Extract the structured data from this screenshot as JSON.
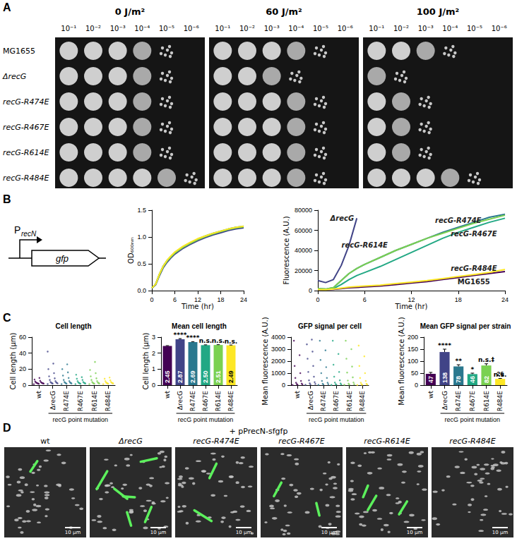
{
  "panel_labels": [
    "A",
    "B",
    "C",
    "D"
  ],
  "spot_assay": {
    "doses": [
      "0 J/m²",
      "60 J/m²",
      "100 J/m²"
    ],
    "dilutions": [
      "10⁻¹",
      "10⁻²",
      "10⁻³",
      "10⁻⁴",
      "10⁻⁵",
      "10⁻⁶"
    ],
    "strains": [
      "MG1655",
      "ΔrecG",
      "recG-R474E",
      "recG-R467E",
      "recG-R614E",
      "recG-R484E"
    ],
    "spots_visible": [
      [
        5,
        5,
        4
      ],
      [
        5,
        4,
        2
      ],
      [
        5,
        5,
        3
      ],
      [
        5,
        5,
        3
      ],
      [
        5,
        5,
        3
      ],
      [
        6,
        5,
        5
      ]
    ]
  },
  "schematic": {
    "promoter": "P",
    "promoter_subscript": "recN",
    "gene": "gfp"
  },
  "chart_data": [
    {
      "type": "line",
      "x_label": "Time (hr)",
      "y_label": "OD₆₀₀ₙₘ",
      "x": [
        0,
        1,
        2,
        3,
        4,
        5,
        6,
        8,
        10,
        12,
        14,
        16,
        18,
        20,
        22,
        24
      ],
      "series": [
        {
          "color": "#440154",
          "values": [
            0.05,
            0.12,
            0.3,
            0.45,
            0.55,
            0.63,
            0.7,
            0.8,
            0.88,
            0.95,
            1.0,
            1.05,
            1.09,
            1.13,
            1.16,
            1.18
          ]
        },
        {
          "color": "#414487",
          "values": [
            0.05,
            0.11,
            0.28,
            0.43,
            0.53,
            0.61,
            0.68,
            0.78,
            0.86,
            0.93,
            0.99,
            1.04,
            1.08,
            1.12,
            1.15,
            1.17
          ]
        },
        {
          "color": "#2a788e",
          "values": [
            0.05,
            0.12,
            0.3,
            0.46,
            0.56,
            0.64,
            0.71,
            0.81,
            0.89,
            0.96,
            1.01,
            1.06,
            1.1,
            1.14,
            1.17,
            1.19
          ]
        },
        {
          "color": "#22a884",
          "values": [
            0.05,
            0.12,
            0.31,
            0.46,
            0.56,
            0.64,
            0.71,
            0.81,
            0.89,
            0.96,
            1.02,
            1.07,
            1.11,
            1.15,
            1.18,
            1.2
          ]
        },
        {
          "color": "#7ad151",
          "values": [
            0.05,
            0.12,
            0.3,
            0.45,
            0.55,
            0.63,
            0.7,
            0.8,
            0.88,
            0.95,
            1.01,
            1.06,
            1.1,
            1.14,
            1.17,
            1.19
          ]
        },
        {
          "color": "#fde725",
          "values": [
            0.05,
            0.12,
            0.31,
            0.46,
            0.57,
            0.65,
            0.72,
            0.82,
            0.9,
            0.97,
            1.02,
            1.07,
            1.11,
            1.15,
            1.18,
            1.2
          ]
        }
      ],
      "xlim": [
        0,
        24
      ],
      "xticks": [
        0,
        6,
        12,
        18,
        24
      ],
      "ylim": [
        0,
        1.5
      ],
      "yticks": [
        {
          "value": 0,
          "label": "0.0"
        },
        {
          "value": 0.5,
          "label": "0.5"
        },
        {
          "value": 1,
          "label": "1.0"
        },
        {
          "value": 1.5,
          "label": "1.5"
        }
      ]
    },
    {
      "type": "line",
      "x_label": "Time (hr)",
      "y_label": "Fluorescence (A.U.)",
      "x": [
        0,
        1,
        2,
        3,
        4,
        5,
        6,
        8,
        10,
        12,
        14,
        16,
        18,
        20,
        22,
        24
      ],
      "series": [
        {
          "name": "MG1655",
          "color": "#440154",
          "values": [
            1000,
            800,
            1200,
            2000,
            2800,
            3200,
            3600,
            4500,
            6000,
            7500,
            9000,
            11000,
            13000,
            15000,
            17000,
            19000
          ]
        },
        {
          "name": "ΔrecG",
          "color": "#414487",
          "values": [
            10000,
            8000,
            11000,
            25000,
            45000,
            72000,
            null,
            null,
            null,
            null,
            null,
            null,
            null,
            null,
            null,
            null
          ]
        },
        {
          "name": "recG-R474E",
          "color": "#2a788e",
          "values": [
            2000,
            1500,
            3000,
            10000,
            17000,
            22000,
            26000,
            33000,
            40000,
            46000,
            52000,
            58000,
            63000,
            68000,
            73000,
            76000
          ]
        },
        {
          "name": "recG-R467E",
          "color": "#22a884",
          "values": [
            1500,
            1000,
            2000,
            6000,
            11000,
            15000,
            18000,
            24000,
            31000,
            38000,
            45000,
            52000,
            58000,
            63000,
            68000,
            72000
          ]
        },
        {
          "name": "recG-R614E",
          "color": "#7ad151",
          "values": [
            2000,
            1500,
            3000,
            10000,
            17000,
            22000,
            26000,
            33000,
            40000,
            46000,
            52000,
            57000,
            62000,
            67000,
            71000,
            75000
          ]
        },
        {
          "name": "recG-R484E",
          "color": "#fde725",
          "values": [
            1000,
            800,
            1500,
            2500,
            3500,
            4000,
            4500,
            5500,
            7000,
            8500,
            10000,
            12000,
            14000,
            16000,
            18000,
            21000
          ]
        }
      ],
      "xlim": [
        0,
        24
      ],
      "xticks": [
        0,
        6,
        12,
        18,
        24
      ],
      "ylim": [
        0,
        80000
      ],
      "yticks": [
        0,
        20000,
        40000,
        60000,
        80000
      ]
    },
    {
      "type": "scatter",
      "title": "Cell length",
      "y_label": "Cell length (µm)",
      "x_label": "recG point mutation",
      "categories": [
        "wt",
        "ΔrecG",
        "R474E",
        "R467E",
        "R614E",
        "R484E"
      ],
      "colors": [
        "#440154",
        "#414487",
        "#2a788e",
        "#22a884",
        "#7ad151",
        "#fde725"
      ],
      "values": [
        [
          1.2,
          1.6,
          1.9,
          2.1,
          2.3,
          2.4,
          2.6,
          2.8,
          3.0,
          3.4,
          3.9,
          4.6,
          5.5,
          7,
          9
        ],
        [
          1.4,
          1.9,
          2.2,
          2.5,
          2.8,
          3.1,
          3.5,
          4,
          5,
          6.5,
          8.5,
          11,
          15,
          20,
          27,
          42
        ],
        [
          1.3,
          1.8,
          2.1,
          2.4,
          2.7,
          3,
          3.4,
          4,
          5,
          6.5,
          9,
          12,
          16,
          20,
          26
        ],
        [
          1.3,
          1.8,
          2.1,
          2.3,
          2.5,
          2.7,
          3,
          3.4,
          4,
          5,
          6.5,
          8,
          10,
          13
        ],
        [
          1.3,
          1.8,
          2.1,
          2.3,
          2.6,
          2.9,
          3.3,
          4,
          5,
          6.5,
          8.5,
          11,
          15,
          19,
          29
        ],
        [
          1.3,
          1.8,
          2.1,
          2.3,
          2.5,
          2.7,
          3,
          3.4,
          4,
          5,
          6,
          8,
          9.5
        ]
      ],
      "ylim": [
        0,
        60
      ],
      "yticks": [
        0,
        20,
        40,
        60
      ]
    },
    {
      "type": "bar",
      "title": "Mean cell length",
      "y_label": "Cell length (µm)",
      "x_label": "recG point mutation",
      "categories": [
        "wt",
        "ΔrecG",
        "R474E",
        "R467E",
        "R614E",
        "R484E"
      ],
      "colors": [
        "#440154",
        "#414487",
        "#2a788e",
        "#22a884",
        "#7ad151",
        "#fde725"
      ],
      "values": [
        2.45,
        2.87,
        2.69,
        2.5,
        2.51,
        2.49
      ],
      "value_labels": [
        "2.45",
        "2.87",
        "2.69",
        "2.50",
        "2.51",
        "2.49"
      ],
      "errors": [
        0.02,
        0.04,
        0.03,
        0.02,
        0.02,
        0.02
      ],
      "significance": [
        null,
        "****",
        "****",
        "n.s.",
        "n.s.",
        "n.s."
      ],
      "data_labels": true,
      "ylim": [
        0,
        3
      ],
      "yticks": [
        0,
        1,
        2,
        3
      ]
    },
    {
      "type": "scatter",
      "title": "GFP signal per cell",
      "y_label": "Mean fluorescence (A.U.)",
      "x_label": "recG point mutation",
      "categories": [
        "wt",
        "ΔrecG",
        "R474E",
        "R467E",
        "R614E",
        "R484E"
      ],
      "colors": [
        "#440154",
        "#414487",
        "#2a788e",
        "#22a884",
        "#7ad151",
        "#fde725"
      ],
      "values": [
        [
          20,
          40,
          60,
          90,
          130,
          200,
          350,
          600,
          1000,
          1600,
          2500,
          3700
        ],
        [
          30,
          60,
          100,
          150,
          250,
          400,
          700,
          1100,
          1600,
          2200,
          2800,
          3400,
          3800
        ],
        [
          30,
          50,
          80,
          120,
          200,
          350,
          600,
          1000,
          1500,
          2100,
          2900,
          3700
        ],
        [
          20,
          40,
          60,
          90,
          140,
          220,
          400,
          700,
          1100,
          1700,
          2600,
          3700
        ],
        [
          30,
          50,
          80,
          130,
          220,
          380,
          650,
          1050,
          1550,
          2200,
          3000,
          3700
        ],
        [
          15,
          30,
          50,
          80,
          120,
          200,
          350,
          600,
          1000,
          1600,
          2400,
          3300
        ]
      ],
      "ylim": [
        0,
        4000
      ],
      "yticks": [
        0,
        1000,
        2000,
        3000,
        4000
      ]
    },
    {
      "type": "bar",
      "title": "Mean GFP signal per strain",
      "y_label": "Mean fluorescence (A.U.)",
      "x_label": "recG point mutation",
      "categories": [
        "wt",
        "ΔrecG",
        "R474E",
        "R467E",
        "R614E",
        "R484E"
      ],
      "colors": [
        "#440154",
        "#414487",
        "#2a788e",
        "#22a884",
        "#7ad151",
        "#fde725"
      ],
      "values": [
        47,
        138,
        78,
        46,
        82,
        26
      ],
      "errors": [
        6,
        12,
        7,
        4,
        7,
        2
      ],
      "significance": [
        null,
        "****",
        "**",
        "*",
        "n.s.‡",
        "n.s."
      ],
      "data_labels": true,
      "ylim": [
        0,
        200
      ],
      "yticks": [
        0,
        50,
        100,
        150,
        200
      ]
    }
  ],
  "microscopy": {
    "title": "+ pPrecN-sfgfp",
    "panels": [
      "wt",
      "ΔrecG",
      "recG-R474E",
      "recG-R467E",
      "recG-R614E",
      "recG-R484E"
    ],
    "scale_bar": "10 µm",
    "filamentous_green_cells": [
      1,
      6,
      2,
      2,
      3,
      0
    ]
  }
}
